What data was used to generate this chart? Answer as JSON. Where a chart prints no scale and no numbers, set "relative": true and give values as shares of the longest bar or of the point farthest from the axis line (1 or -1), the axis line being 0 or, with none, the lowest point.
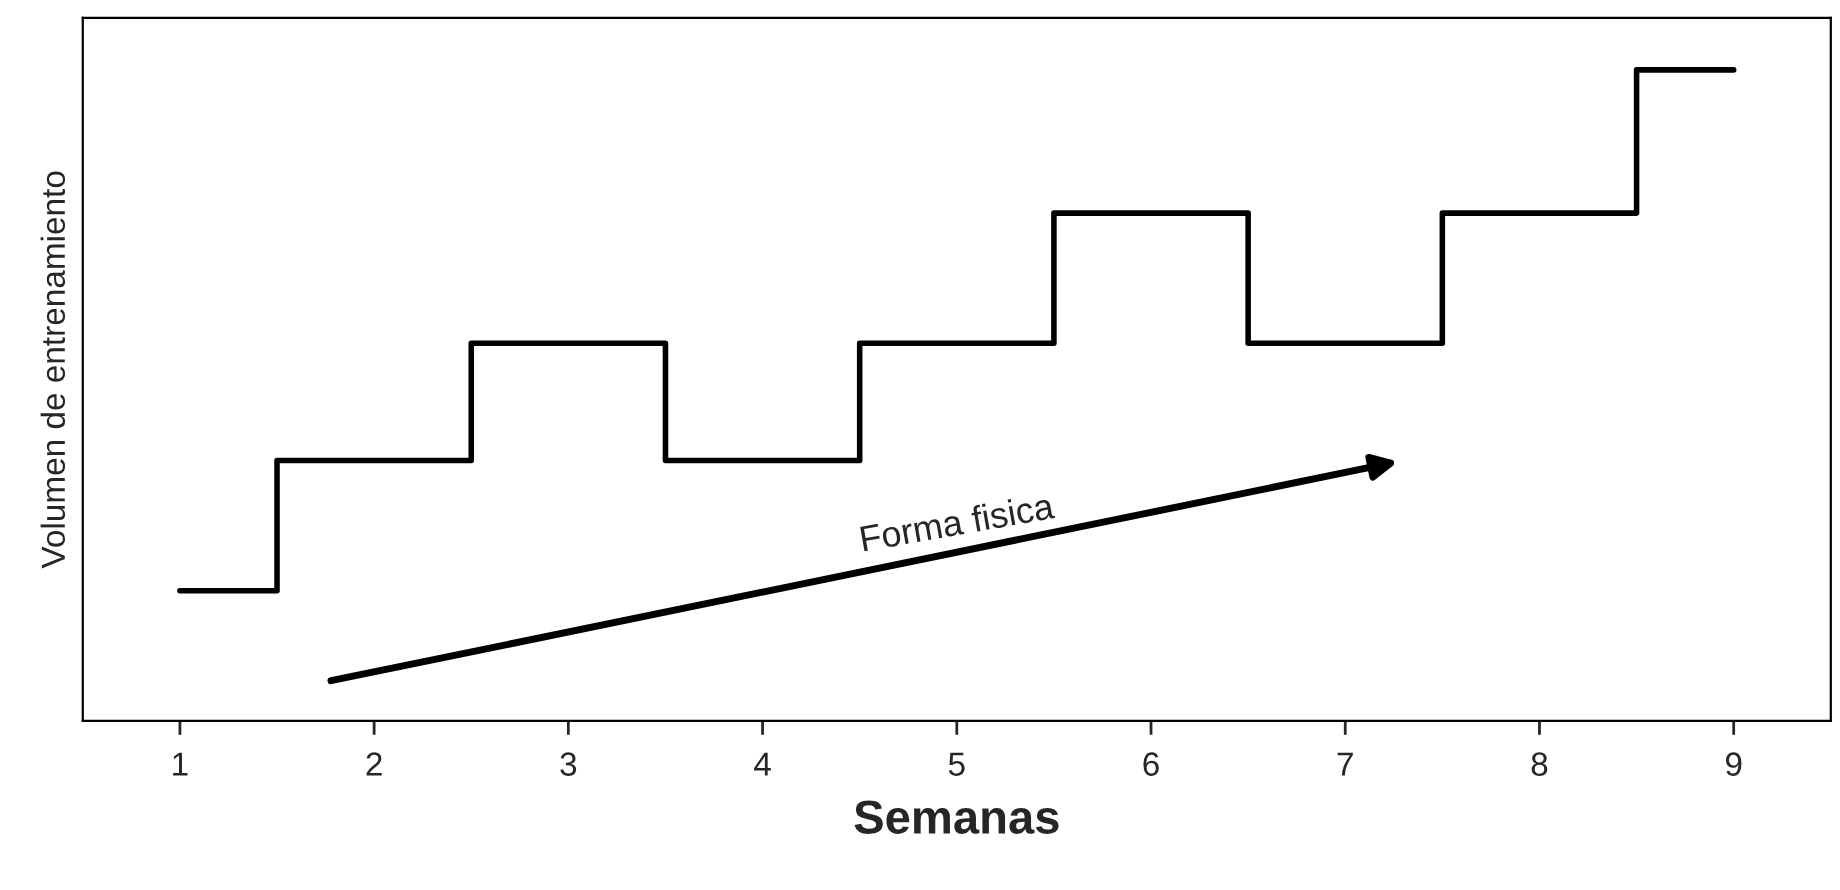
{
  "chart_data": {
    "type": "step",
    "relative": true,
    "xlabel": "Semanas",
    "ylabel": "Volumen de entrenamiento",
    "categories": [
      "1",
      "2",
      "3",
      "4",
      "5",
      "6",
      "7",
      "8",
      "9"
    ],
    "series": [
      {
        "color": "#000000",
        "values": [
          0.2,
          0.4,
          0.58,
          0.4,
          0.58,
          0.78,
          0.58,
          0.78,
          1.0
        ]
      }
    ],
    "annotations": [
      "Forma fisica"
    ],
    "grid": false,
    "legend": false
  }
}
